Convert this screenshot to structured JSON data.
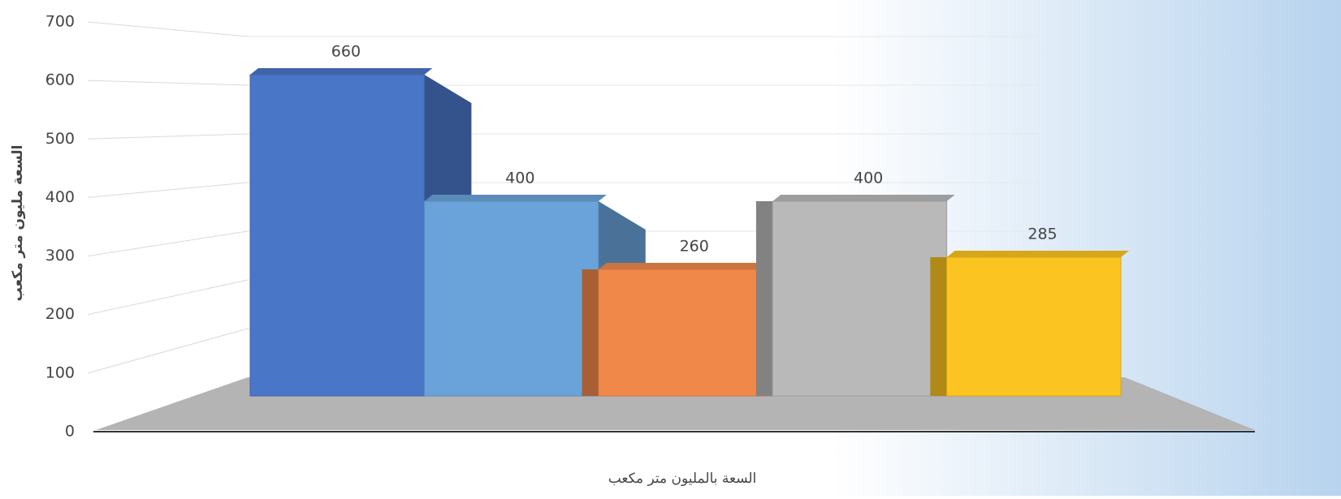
{
  "chart_data": {
    "type": "bar3d",
    "categories": [
      null,
      null,
      null,
      null,
      null
    ],
    "values": [
      660,
      400,
      260,
      400,
      285
    ],
    "colors": [
      "#4a76c8",
      "#6aa3da",
      "#f0884a",
      "#b9b9b9",
      "#fcc420"
    ],
    "ylim": [
      0,
      700
    ],
    "yticks": [
      0,
      100,
      200,
      300,
      400,
      500,
      600,
      700
    ],
    "grid": true,
    "y_label": "السعة مليون متر مكعب",
    "x_label": "السعة بالمليون متر مكعب"
  }
}
